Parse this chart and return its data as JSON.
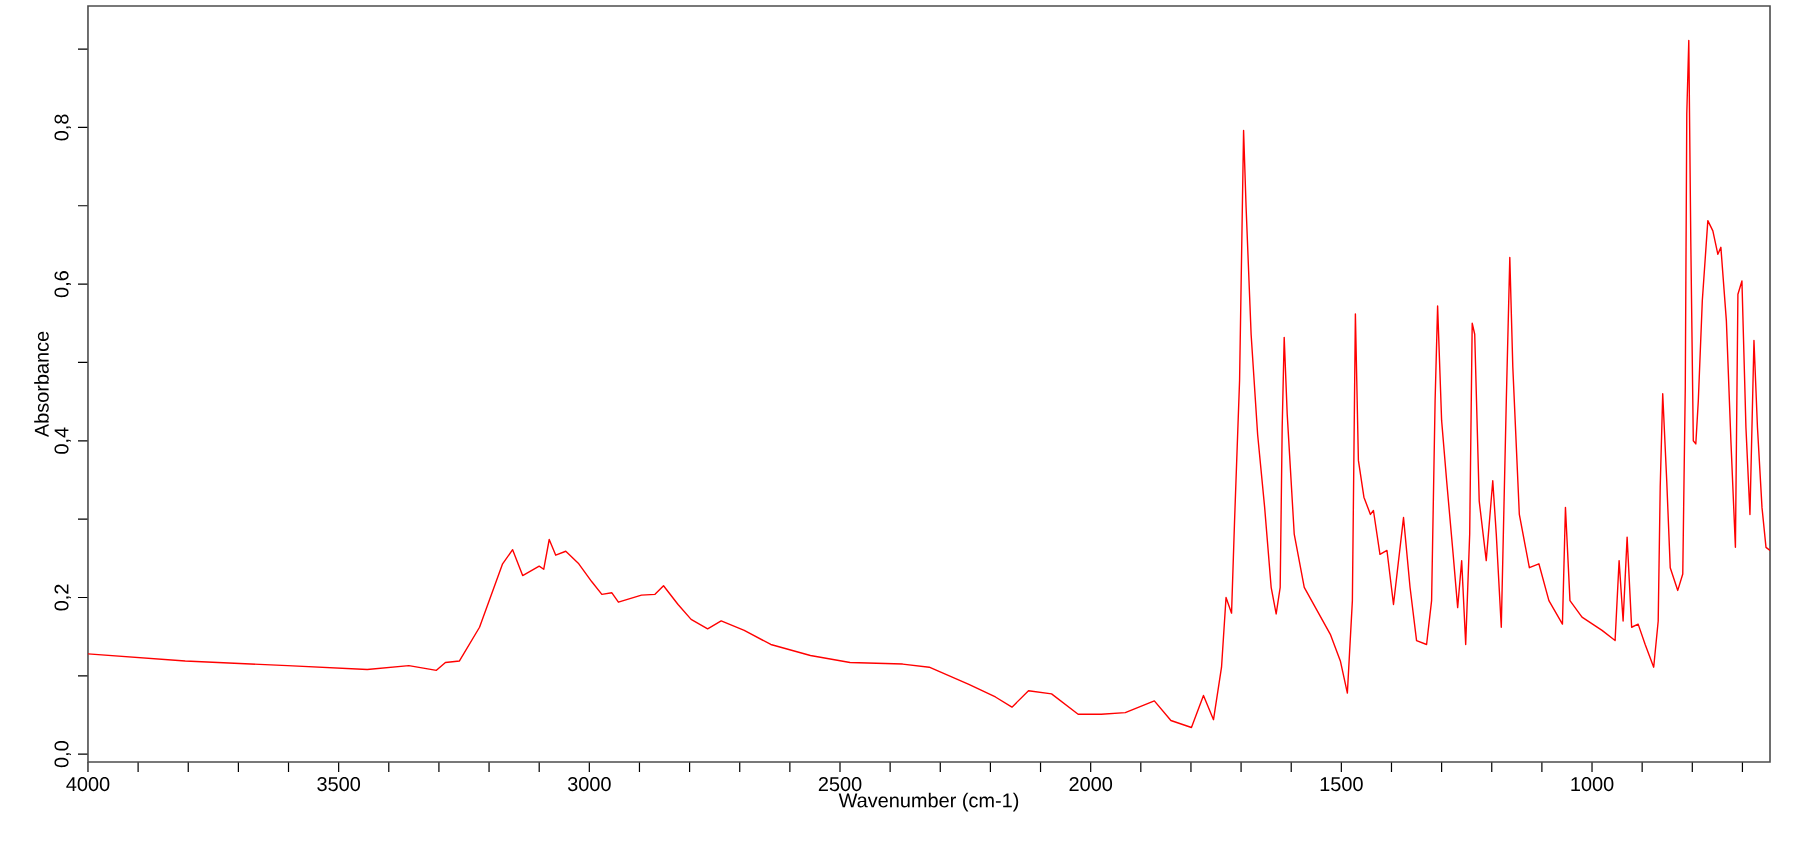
{
  "chart_data": {
    "type": "line",
    "xlabel": "Wavenumber (cm-1)",
    "ylabel": "Absorbance",
    "color": "#ff0000",
    "line_style": "solid",
    "xlim": [
      4000,
      645
    ],
    "ylim": [
      -0.01,
      0.955
    ],
    "xticks": [
      4000,
      {
        "value": 3900,
        "label": null
      },
      {
        "value": 3800,
        "label": null
      },
      {
        "value": 3700,
        "label": null
      },
      {
        "value": 3600,
        "label": null
      },
      3500,
      {
        "value": 3400,
        "label": null
      },
      {
        "value": 3300,
        "label": null
      },
      {
        "value": 3200,
        "label": null
      },
      {
        "value": 3100,
        "label": null
      },
      3000,
      {
        "value": 2900,
        "label": null
      },
      {
        "value": 2800,
        "label": null
      },
      {
        "value": 2700,
        "label": null
      },
      {
        "value": 2600,
        "label": null
      },
      2500,
      {
        "value": 2400,
        "label": null
      },
      {
        "value": 2300,
        "label": null
      },
      {
        "value": 2200,
        "label": null
      },
      {
        "value": 2100,
        "label": null
      },
      2000,
      {
        "value": 1900,
        "label": null
      },
      {
        "value": 1800,
        "label": null
      },
      {
        "value": 1700,
        "label": null
      },
      {
        "value": 1600,
        "label": null
      },
      1500,
      {
        "value": 1400,
        "label": null
      },
      {
        "value": 1300,
        "label": null
      },
      {
        "value": 1200,
        "label": null
      },
      {
        "value": 1100,
        "label": null
      },
      1000,
      {
        "value": 900,
        "label": null
      },
      {
        "value": 800,
        "label": null
      },
      {
        "value": 700,
        "label": null
      }
    ],
    "yticks": [
      {
        "value": 0,
        "label": "0,0"
      },
      {
        "value": 0.1,
        "label": null
      },
      {
        "value": 0.2,
        "label": "0,2"
      },
      {
        "value": 0.3,
        "label": null
      },
      {
        "value": 0.4,
        "label": "0,4"
      },
      {
        "value": 0.5,
        "label": null
      },
      {
        "value": 0.6,
        "label": "0,6"
      },
      {
        "value": 0.7,
        "label": null
      },
      {
        "value": 0.8,
        "label": "0,8"
      },
      {
        "value": 0.9,
        "label": null
      }
    ],
    "x": [
      4000,
      3806,
      3602,
      3443,
      3360,
      3305,
      3287,
      3259,
      3219,
      3173,
      3153,
      3133,
      3100,
      3091,
      3080,
      3067,
      3047,
      3021,
      2995,
      2975,
      2955,
      2942,
      2896,
      2869,
      2852,
      2823,
      2797,
      2764,
      2737,
      2691,
      2638,
      2559,
      2480,
      2375,
      2322,
      2243,
      2190,
      2157,
      2124,
      2078,
      2025,
      1979,
      1931,
      1873,
      1840,
      1799,
      1775,
      1755,
      1739,
      1730,
      1719,
      1713,
      1703,
      1695,
      1690,
      1680,
      1667,
      1653,
      1640,
      1630,
      1622,
      1618,
      1614,
      1608,
      1594,
      1574,
      1548,
      1522,
      1502,
      1488,
      1478,
      1472,
      1466,
      1455,
      1442,
      1436,
      1423,
      1409,
      1396,
      1376,
      1363,
      1350,
      1330,
      1320,
      1313,
      1308,
      1300,
      1290,
      1277,
      1268,
      1260,
      1252,
      1244,
      1239,
      1234,
      1225,
      1211,
      1198,
      1191,
      1181,
      1171,
      1164,
      1158,
      1145,
      1125,
      1106,
      1086,
      1059,
      1053,
      1044,
      1020,
      980,
      954,
      946,
      938,
      930,
      921,
      908,
      894,
      877,
      868,
      864,
      859,
      851,
      844,
      829,
      819,
      814,
      811,
      807,
      803,
      798,
      793,
      788,
      780,
      769,
      759,
      749,
      743,
      732,
      723,
      714,
      709,
      701,
      693,
      685,
      677,
      670,
      661,
      653,
      645
    ],
    "values": [
      0.128,
      0.119,
      0.113,
      0.108,
      0.113,
      0.107,
      0.117,
      0.119,
      0.162,
      0.243,
      0.261,
      0.228,
      0.24,
      0.236,
      0.274,
      0.254,
      0.259,
      0.243,
      0.22,
      0.204,
      0.206,
      0.194,
      0.203,
      0.204,
      0.215,
      0.191,
      0.172,
      0.16,
      0.17,
      0.158,
      0.14,
      0.126,
      0.117,
      0.115,
      0.111,
      0.089,
      0.073,
      0.06,
      0.081,
      0.077,
      0.051,
      0.051,
      0.053,
      0.068,
      0.043,
      0.034,
      0.075,
      0.044,
      0.111,
      0.2,
      0.18,
      0.298,
      0.477,
      0.796,
      0.698,
      0.536,
      0.408,
      0.315,
      0.213,
      0.179,
      0.213,
      0.417,
      0.532,
      0.434,
      0.281,
      0.213,
      0.183,
      0.153,
      0.119,
      0.078,
      0.196,
      0.562,
      0.375,
      0.328,
      0.306,
      0.311,
      0.255,
      0.26,
      0.191,
      0.302,
      0.213,
      0.145,
      0.14,
      0.196,
      0.451,
      0.572,
      0.426,
      0.349,
      0.255,
      0.187,
      0.247,
      0.14,
      0.281,
      0.55,
      0.536,
      0.323,
      0.247,
      0.349,
      0.281,
      0.162,
      0.451,
      0.634,
      0.494,
      0.306,
      0.238,
      0.243,
      0.196,
      0.166,
      0.315,
      0.196,
      0.175,
      0.158,
      0.145,
      0.247,
      0.17,
      0.277,
      0.162,
      0.166,
      0.14,
      0.111,
      0.17,
      0.341,
      0.46,
      0.349,
      0.238,
      0.209,
      0.23,
      0.468,
      0.817,
      0.911,
      0.655,
      0.4,
      0.396,
      0.451,
      0.579,
      0.681,
      0.668,
      0.638,
      0.647,
      0.553,
      0.4,
      0.264,
      0.587,
      0.604,
      0.417,
      0.306,
      0.528,
      0.417,
      0.315,
      0.264,
      0.26
    ]
  }
}
